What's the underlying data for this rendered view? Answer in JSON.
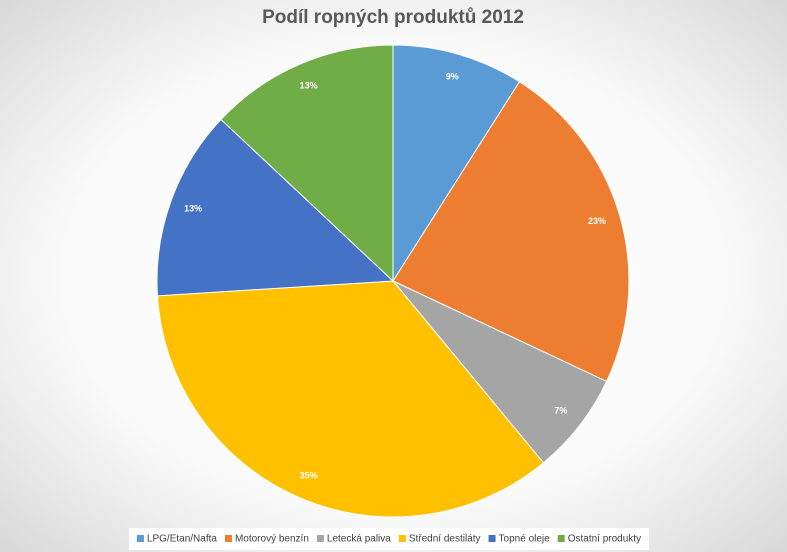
{
  "chart_data": {
    "type": "pie",
    "title": "Podíl ropných produktů 2012",
    "categories": [
      "LPG/Etan/Nafta",
      "Motorový benzín",
      "Letecká paliva",
      "Střední destiláty",
      "Topné oleje",
      "Ostatní produkty"
    ],
    "values": [
      9,
      23,
      7,
      35,
      13,
      13
    ],
    "value_labels": [
      "9%",
      "23%",
      "7%",
      "35%",
      "13%",
      "13%"
    ],
    "colors": [
      "#5b9bd5",
      "#ed7d31",
      "#a5a5a5",
      "#ffc000",
      "#4472c4",
      "#70ad47"
    ],
    "legend": "bottom"
  }
}
